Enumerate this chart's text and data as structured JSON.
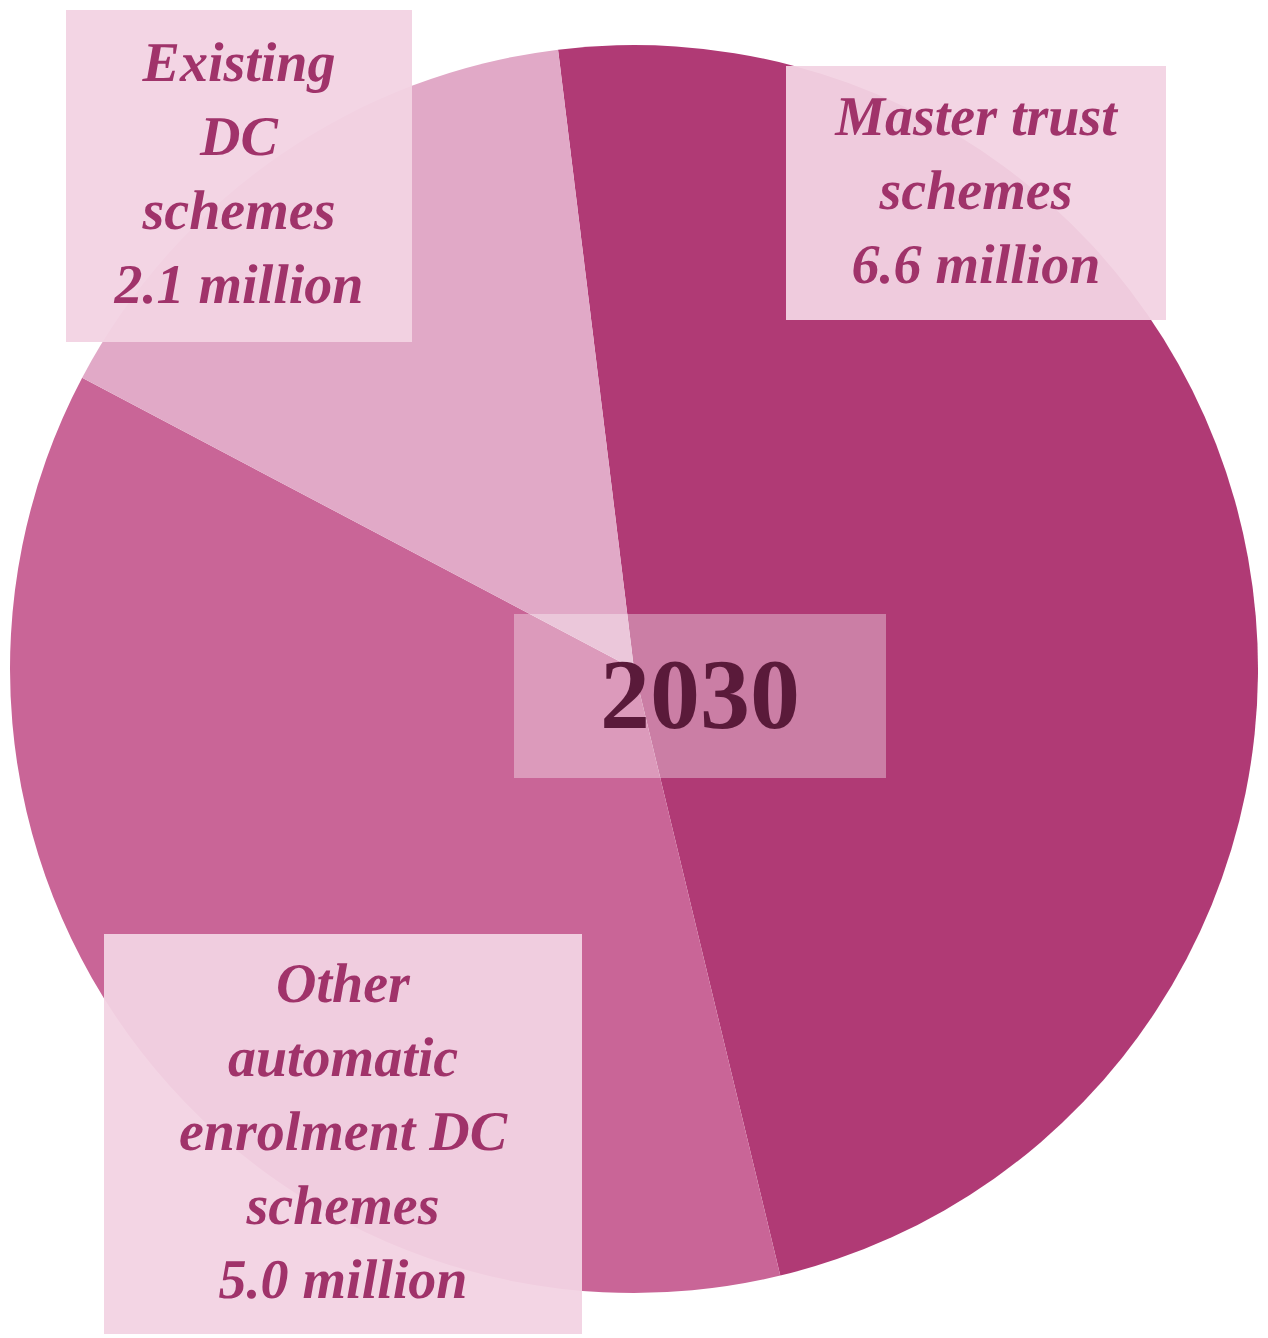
{
  "chart_data": {
    "type": "pie",
    "title": "2030",
    "categories": [
      "Master trust schemes",
      "Other automatic enrolment DC schemes",
      "Existing DC schemes"
    ],
    "values": [
      6.6,
      5.0,
      2.1
    ],
    "value_labels": [
      "6.6 million",
      "5.0 million",
      "2.1 million"
    ],
    "colors": [
      "#b03a75",
      "#c96597",
      "#e1a9c7"
    ],
    "legend": false
  }
}
